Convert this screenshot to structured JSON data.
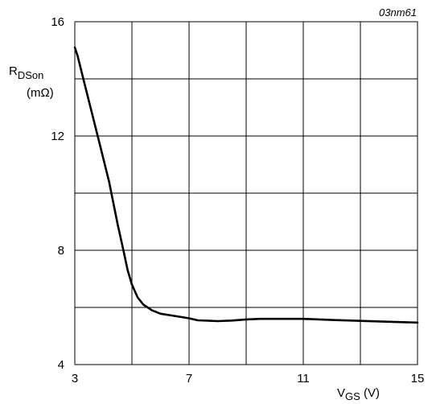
{
  "chart_data": {
    "type": "line",
    "figure_code": "03nm61",
    "ylabel": {
      "main": "R",
      "sub": "DSon",
      "unit": "(mΩ)"
    },
    "xlabel": {
      "main": "V",
      "sub": "GS",
      "unit": " (V)"
    },
    "xlim": [
      3,
      15
    ],
    "ylim": [
      4,
      16
    ],
    "x_grid": [
      3,
      5,
      7,
      9,
      11,
      13,
      15
    ],
    "y_grid": [
      4,
      6,
      8,
      10,
      12,
      14,
      16
    ],
    "x_tick_labels": [
      {
        "value": 3,
        "label": "3"
      },
      {
        "value": 7,
        "label": "7"
      },
      {
        "value": 11,
        "label": "11"
      },
      {
        "value": 15,
        "label": "15"
      }
    ],
    "y_tick_labels": [
      {
        "value": 16,
        "label": "16"
      },
      {
        "value": 12,
        "label": "12"
      },
      {
        "value": 8,
        "label": "8"
      },
      {
        "value": 4,
        "label": "4"
      }
    ],
    "grid": true,
    "series": [
      {
        "x": [
          3.0,
          3.1,
          3.3,
          3.6,
          3.9,
          4.2,
          4.5,
          4.7,
          4.85,
          5.0,
          5.2,
          5.4,
          5.7,
          6.0,
          6.5,
          7.0,
          7.3,
          8.0,
          8.5,
          9.0,
          9.5,
          10.0,
          11.0,
          12.0,
          13.0,
          14.0,
          15.0
        ],
        "y": [
          15.1,
          14.8,
          14.0,
          12.8,
          11.6,
          10.4,
          8.9,
          8.0,
          7.3,
          6.8,
          6.35,
          6.1,
          5.9,
          5.78,
          5.7,
          5.62,
          5.55,
          5.52,
          5.54,
          5.58,
          5.6,
          5.6,
          5.6,
          5.56,
          5.53,
          5.5,
          5.47
        ]
      }
    ]
  }
}
